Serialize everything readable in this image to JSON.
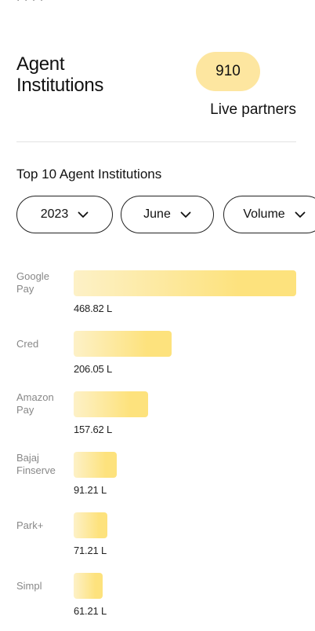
{
  "top_cutoff": "· · · ·",
  "header": {
    "title_line1": "Agent",
    "title_line2": "Institutions",
    "count": "910",
    "count_caption": "Live partners"
  },
  "section_title": "Top 10 Agent Institutions",
  "filters": {
    "year": "2023",
    "month": "June",
    "metric": "Volume"
  },
  "chart_data": {
    "type": "bar",
    "orientation": "horizontal",
    "title": "",
    "unit": "L",
    "categories": [
      "Google Pay",
      "Cred",
      "Amazon Pay",
      "Bajaj Finserve",
      "Park+",
      "Simpl"
    ],
    "label_lines": [
      [
        "Google",
        "Pay"
      ],
      [
        "Cred"
      ],
      [
        "Amazon",
        "Pay"
      ],
      [
        "Bajaj",
        "Finserve"
      ],
      [
        "Park+"
      ],
      [
        "Simpl"
      ]
    ],
    "values": [
      468.82,
      206.05,
      157.62,
      91.21,
      71.21,
      61.21
    ],
    "value_labels": [
      "468.82 L",
      "206.05 L",
      "157.62 L",
      "91.21 L",
      "71.21 L",
      "61.21 L"
    ],
    "colors": {
      "start": "#fdf1c7",
      "end": "#fde27d"
    }
  }
}
